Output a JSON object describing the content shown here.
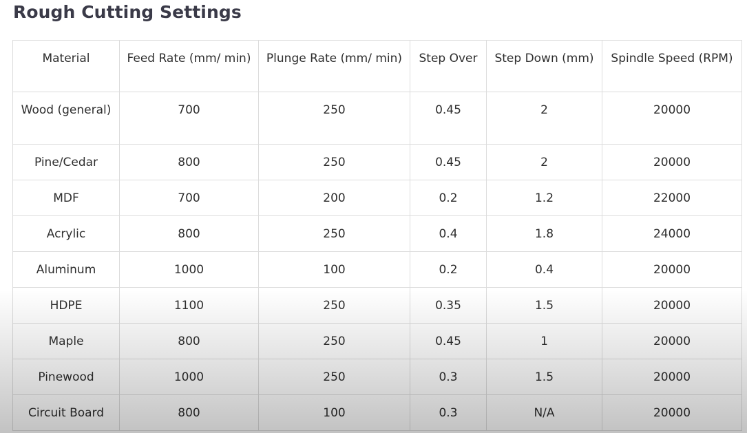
{
  "title": "Rough Cutting Settings",
  "columns": [
    "Material",
    "Feed Rate (mm/ min)",
    "Plunge Rate (mm/ min)",
    "Step Over",
    "Step Down (mm)",
    "Spindle Speed (RPM)"
  ],
  "rows": [
    [
      "Wood (general)",
      "700",
      "250",
      "0.45",
      "2",
      "20000"
    ],
    [
      "Pine/Cedar",
      "800",
      "250",
      "0.45",
      "2",
      "20000"
    ],
    [
      "MDF",
      "700",
      "200",
      "0.2",
      "1.2",
      "22000"
    ],
    [
      "Acrylic",
      "800",
      "250",
      "0.4",
      "1.8",
      "24000"
    ],
    [
      "Aluminum",
      "1000",
      "100",
      "0.2",
      "0.4",
      "20000"
    ],
    [
      "HDPE",
      "1100",
      "250",
      "0.35",
      "1.5",
      "20000"
    ],
    [
      "Maple",
      "800",
      "250",
      "0.45",
      "1",
      "20000"
    ],
    [
      "Pinewood",
      "1000",
      "250",
      "0.3",
      "1.5",
      "20000"
    ],
    [
      "Circuit Board",
      "800",
      "100",
      "0.3",
      "N/A",
      "20000"
    ]
  ]
}
